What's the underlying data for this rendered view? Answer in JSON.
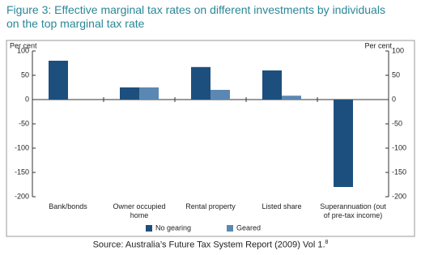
{
  "chart_data": {
    "type": "bar",
    "title": "Figure 3: Effective marginal tax rates on different investments by individuals on the top marginal tax rate",
    "y_label": "Per cent",
    "y2_label": "Per cent",
    "categories": [
      "Bank/bonds",
      "Owner occupied home",
      "Rental property",
      "Listed share",
      "Superannuation (out of pre-tax income)"
    ],
    "series": [
      {
        "name": "No gearing",
        "color": "#1d4f7e",
        "values": [
          80,
          25,
          67,
          60,
          -180
        ]
      },
      {
        "name": "Geared",
        "color": "#5b88b2",
        "values": [
          null,
          25,
          20,
          8,
          null
        ]
      }
    ],
    "ylim": [
      -200,
      100
    ],
    "yticks": [
      -200,
      -150,
      -100,
      -50,
      0,
      50,
      100
    ],
    "y2lim": [
      -200,
      100
    ],
    "y2ticks": [
      -200,
      -150,
      -100,
      -50,
      0,
      50,
      100
    ],
    "grid": false,
    "source": "Source: Australia’s Future Tax System Report (2009) Vol 1.",
    "source_note": "8"
  }
}
